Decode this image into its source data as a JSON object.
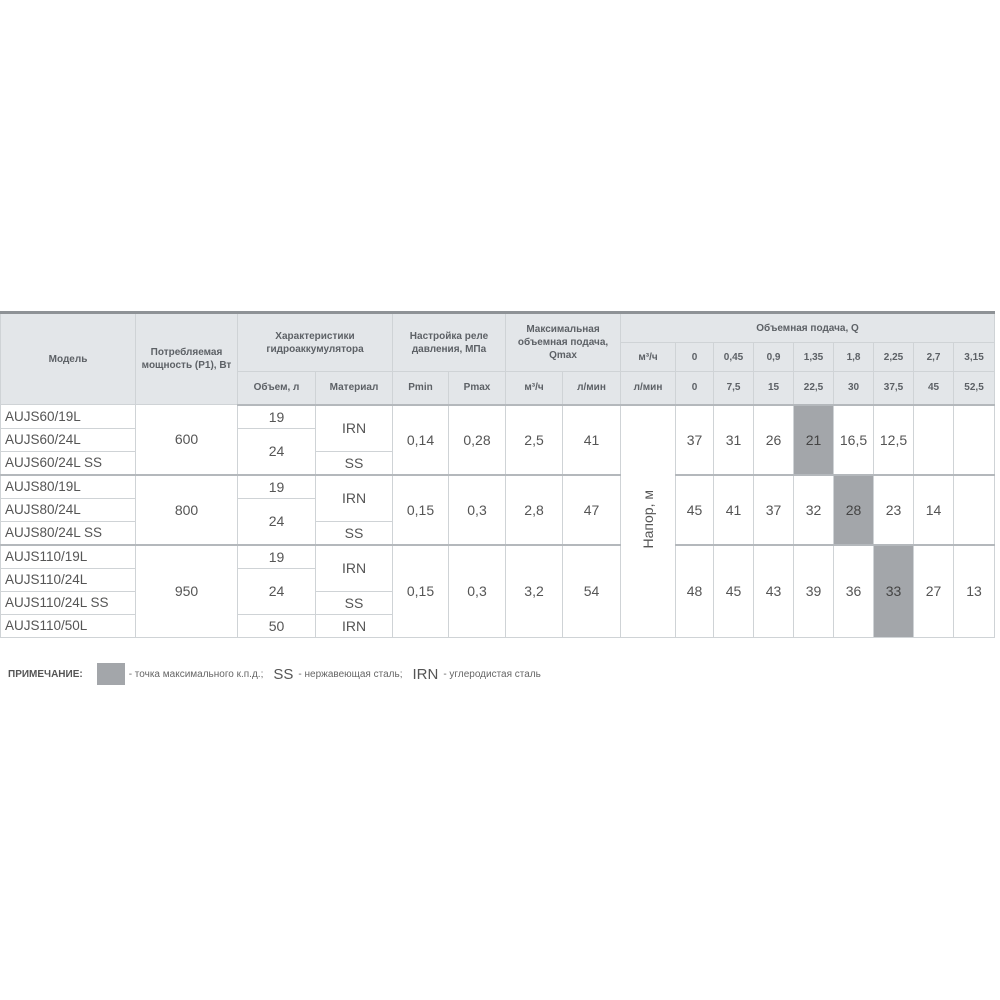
{
  "header": {
    "model": "Модель",
    "power": "Потребляемая мощность (P1), Вт",
    "accumulator": "Характеристики гидроаккумулятора",
    "volume": "Объем, л",
    "material": "Материал",
    "relay": "Настройка реле давления, МПа",
    "pmin": "Pmin",
    "pmax": "Pmax",
    "qmax": "Максимальная объемная подача, Qmax",
    "m3h": "м³/ч",
    "lmin": "л/мин",
    "flow": "Объемная подача, Q",
    "flow_m3h": [
      "0",
      "0,45",
      "0,9",
      "1,35",
      "1,8",
      "2,25",
      "2,7",
      "3,15"
    ],
    "flow_lmin": [
      "0",
      "7,5",
      "15",
      "22,5",
      "30",
      "37,5",
      "45",
      "52,5"
    ],
    "head": "Напор, м"
  },
  "groups": [
    {
      "models": [
        "AUJS60/19L",
        "AUJS60/24L",
        "AUJS60/24L SS"
      ],
      "power": "600",
      "volumes": [
        "19",
        "24"
      ],
      "materials": [
        "IRN",
        "SS"
      ],
      "pmin": "0,14",
      "pmax": "0,28",
      "qm3": "2,5",
      "ql": "41",
      "heads": [
        "37",
        "31",
        "26",
        "21",
        "16,5",
        "12,5",
        "",
        ""
      ],
      "best": 3
    },
    {
      "models": [
        "AUJS80/19L",
        "AUJS80/24L",
        "AUJS80/24L SS"
      ],
      "power": "800",
      "volumes": [
        "19",
        "24"
      ],
      "materials": [
        "IRN",
        "SS"
      ],
      "pmin": "0,15",
      "pmax": "0,3",
      "qm3": "2,8",
      "ql": "47",
      "heads": [
        "45",
        "41",
        "37",
        "32",
        "28",
        "23",
        "14",
        ""
      ],
      "best": 4
    },
    {
      "models": [
        "AUJS110/19L",
        "AUJS110/24L",
        "AUJS110/24L SS",
        "AUJS110/50L"
      ],
      "power": "950",
      "volumes": [
        "19",
        "24",
        "50"
      ],
      "materials": [
        "IRN",
        "SS",
        "IRN"
      ],
      "pmin": "0,15",
      "pmax": "0,3",
      "qm3": "3,2",
      "ql": "54",
      "heads": [
        "48",
        "45",
        "43",
        "39",
        "36",
        "33",
        "27",
        "13"
      ],
      "best": 5
    }
  ],
  "note": {
    "label": "ПРИМЕЧАНИЕ:",
    "swatch_text": "- точка максимального к.п.д.;",
    "ss": "SS",
    "ss_text": "- нержавеющая сталь;",
    "irn": "IRN",
    "irn_text": "- углеродистая сталь"
  },
  "colors": {
    "highlight": "#a3a6aa",
    "header_bg": "#e3e6e9"
  }
}
